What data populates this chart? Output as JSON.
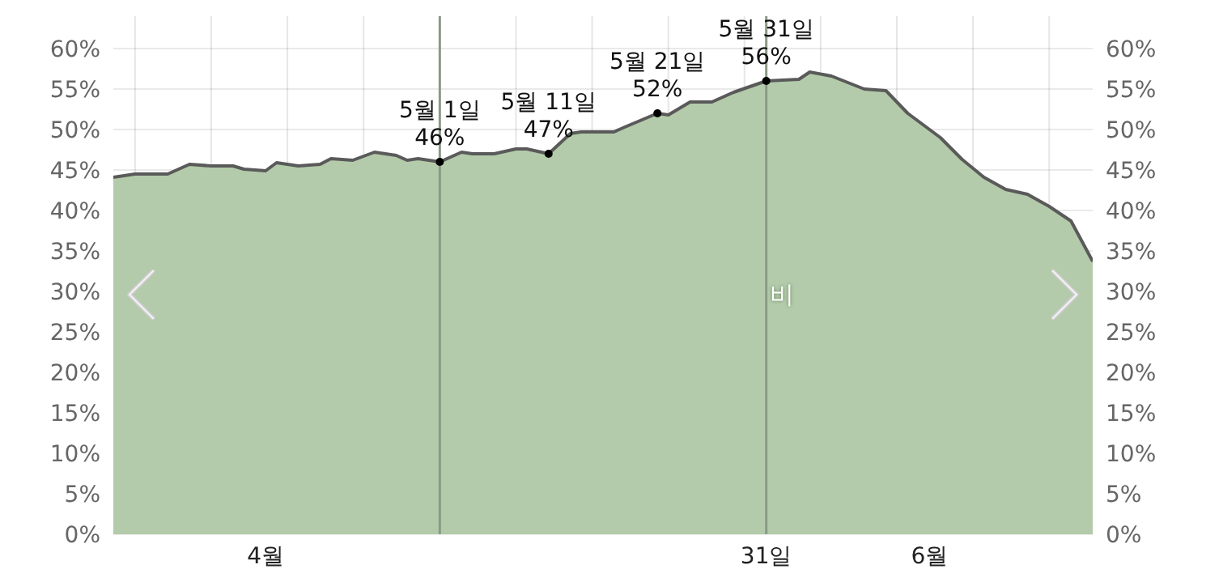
{
  "chart_data": {
    "type": "area",
    "x": [
      "--04-01",
      "--04-03",
      "--04-06",
      "--04-08",
      "--04-10",
      "--04-12",
      "--04-13",
      "--04-15",
      "--04-16",
      "--04-18",
      "--04-20",
      "--04-21",
      "--04-23",
      "--04-25",
      "--04-27",
      "--04-28",
      "--04-29",
      "--05-01",
      "--05-03",
      "--05-04",
      "--05-06",
      "--05-08",
      "--05-09",
      "--05-11",
      "--05-13",
      "--05-14",
      "--05-17",
      "--05-18",
      "--05-21",
      "--05-22",
      "--05-24",
      "--05-26",
      "--05-28",
      "--05-31",
      "--06-03",
      "--06-04",
      "--06-06",
      "--06-09",
      "--06-11",
      "--06-13",
      "--06-16",
      "--06-18",
      "--06-20",
      "--06-22",
      "--06-24",
      "--06-26",
      "--06-28",
      "--06-30"
    ],
    "series": [
      {
        "name": "비",
        "color": "#b3cbaa",
        "values": [
          44.1,
          44.5,
          44.5,
          45.7,
          45.5,
          45.5,
          45.1,
          44.9,
          45.9,
          45.5,
          45.7,
          46.4,
          46.2,
          47.2,
          46.8,
          46.2,
          46.4,
          46,
          47.2,
          47,
          47,
          47.6,
          47.6,
          47,
          49.5,
          49.7,
          49.7,
          50.3,
          52,
          51.8,
          53.4,
          53.4,
          54.6,
          56,
          56.2,
          57.1,
          56.6,
          55,
          54.8,
          52,
          49,
          46.3,
          44.1,
          42.6,
          42,
          40.5,
          38.7,
          33.7
        ]
      }
    ],
    "xlim": [
      "--04-01",
      "--06-30"
    ],
    "xticks": [
      {
        "value": "--04-03",
        "label": null
      },
      {
        "value": "--04-10",
        "label": null
      },
      {
        "value": "--04-15",
        "label": "4월"
      },
      {
        "value": "--04-17",
        "label": null
      },
      {
        "value": "--04-24",
        "label": null
      },
      {
        "value": "--05-08",
        "label": null
      },
      {
        "value": "--05-15",
        "label": null
      },
      {
        "value": "--05-22",
        "label": null
      },
      {
        "value": "--05-29",
        "label": null
      },
      {
        "value": "--05-31",
        "label": "31일"
      },
      {
        "value": "--06-05",
        "label": null
      },
      {
        "value": "--06-12",
        "label": null
      },
      {
        "value": "--06-15",
        "label": "6월"
      },
      {
        "value": "--06-19",
        "label": null
      },
      {
        "value": "--06-26",
        "label": null
      }
    ],
    "ylim": [
      0,
      64
    ],
    "yticks": [
      {
        "value": 0,
        "label": "0%"
      },
      {
        "value": 5,
        "label": "5%"
      },
      {
        "value": 10,
        "label": "10%"
      },
      {
        "value": 15,
        "label": "15%"
      },
      {
        "value": 20,
        "label": "20%"
      },
      {
        "value": 25,
        "label": "25%"
      },
      {
        "value": 30,
        "label": "30%"
      },
      {
        "value": 35,
        "label": "35%"
      },
      {
        "value": 40,
        "label": "40%"
      },
      {
        "value": 45,
        "label": "45%"
      },
      {
        "value": 50,
        "label": "50%"
      },
      {
        "value": 55,
        "label": "55%"
      },
      {
        "value": 60,
        "label": "60%"
      }
    ],
    "y2lim": [
      0,
      64
    ],
    "y2ticks": [
      {
        "value": 0,
        "label": "0%"
      },
      {
        "value": 5,
        "label": "5%"
      },
      {
        "value": 10,
        "label": "10%"
      },
      {
        "value": 15,
        "label": "15%"
      },
      {
        "value": 20,
        "label": "20%"
      },
      {
        "value": 25,
        "label": "25%"
      },
      {
        "value": 30,
        "label": "30%"
      },
      {
        "value": 35,
        "label": "35%"
      },
      {
        "value": 40,
        "label": "40%"
      },
      {
        "value": 45,
        "label": "45%"
      },
      {
        "value": 50,
        "label": "50%"
      },
      {
        "value": 55,
        "label": "55%"
      },
      {
        "value": 60,
        "label": "60%"
      }
    ],
    "ref_lines": [
      {
        "axis": "x",
        "value": "--05-01",
        "color": "#8a9a86"
      },
      {
        "axis": "x",
        "value": "--05-31",
        "color": "#8a9a86"
      }
    ],
    "annotations": [
      {
        "text": "5월 1일\n46%",
        "x": "--05-01",
        "y": 46
      },
      {
        "text": "5월 11일\n47%",
        "x": "--05-11",
        "y": 47
      },
      {
        "text": "5월 21일\n52%",
        "x": "--05-21",
        "y": 52
      },
      {
        "text": "5월 31일\n56%",
        "x": "--05-31",
        "y": 56
      }
    ],
    "grid": true
  }
}
